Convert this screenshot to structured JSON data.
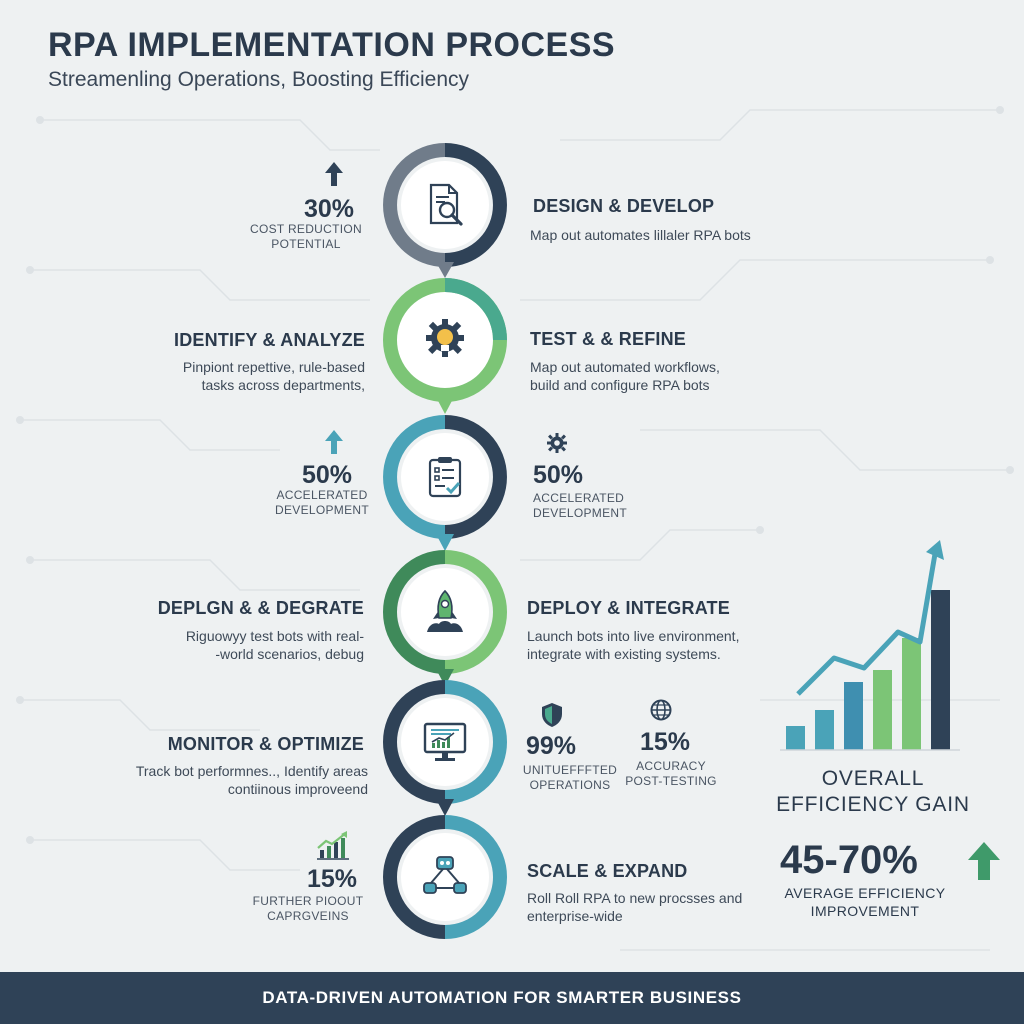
{
  "header": {
    "title": "RPA IMPLEMENTATION PROCESS",
    "subtitle": "Streamenling Operations, Boosting Efficiency"
  },
  "steps": [
    {
      "heading": "DESIGN & DEVELOP",
      "desc": "Map out automates lillaler RPA bots",
      "icon": "document-search-icon"
    },
    {
      "heading": "TEST & & REFINE",
      "desc": "Map out automated workflows,\nbuild and configure RPA bots",
      "icon": "gear-lightbulb-icon"
    },
    {
      "heading": "DEPLOY & INTEGRATE",
      "desc": "Launch bots into live environment,\nintegrate with existing systems.",
      "icon": "rocket-icon"
    },
    {
      "heading": "SCALE & EXPAND",
      "desc": "Roll Roll RPA to new procsses and\nenterprise-wide",
      "icon": "network-icon"
    }
  ],
  "left_steps": [
    {
      "heading": "IDENTIFY & ANALYZE",
      "desc": "Pinpiont repettive, rule-based\ntasks across departments,"
    },
    {
      "heading": "DEPLGN & & DEGRATE",
      "desc": "Riguowyy test bots with real-\n-world scenarios, debug"
    },
    {
      "heading": "MONITOR & OPTIMIZE",
      "desc": "Track bot performnes.., Identify areas\ncontiinous improveend"
    }
  ],
  "stats": [
    {
      "value": "30%",
      "caption": "COST REDUCTION\nPOTENTIAL",
      "icon": "arrow-up-icon"
    },
    {
      "value": "50%",
      "caption": "ACCELERATED\nDEVELOPMENT",
      "icon": "arrow-up-icon"
    },
    {
      "value": "50%",
      "caption": "ACCELERATED\nDEVELOPMENT",
      "icon": "gear-icon"
    },
    {
      "value": "99%",
      "caption": "UNITUEFFFTED\nOPERATIONS",
      "icon": "shield-icon"
    },
    {
      "value": "15%",
      "caption": "ACCURACY\nPOST-TESTING",
      "icon": "globe-icon"
    },
    {
      "value": "15%",
      "caption": "FURTHER PIOOUT\nCAPRGVEINS",
      "icon": "growth-chart-icon"
    }
  ],
  "efficiency": {
    "title": "OVERALL\nEFFICIENCY GAIN",
    "value": "45-70%",
    "caption": "AVERAGE EFFICIENCY\nIMPROVEMENT",
    "icon": "arrow-up-icon"
  },
  "chart_data": {
    "type": "bar",
    "values": [
      12,
      20,
      34,
      40,
      56,
      80
    ],
    "trend": "up",
    "colors": {
      "bars": [
        "#4aa3b8",
        "#4aa3b8",
        "#3f8fb0",
        "#7cc576",
        "#7cc576",
        "#2f4257"
      ],
      "arrow": "#4aa3b8"
    }
  },
  "footer": {
    "text": "DATA-DRIVEN AUTOMATION FOR SMARTER BUSINESS"
  },
  "colors": {
    "navy": "#2f4257",
    "slate": "#707c8a",
    "green": "#7cc576",
    "teal": "#4aa3b8",
    "dark_green": "#3f8a5a",
    "background": "#eef1f2"
  }
}
